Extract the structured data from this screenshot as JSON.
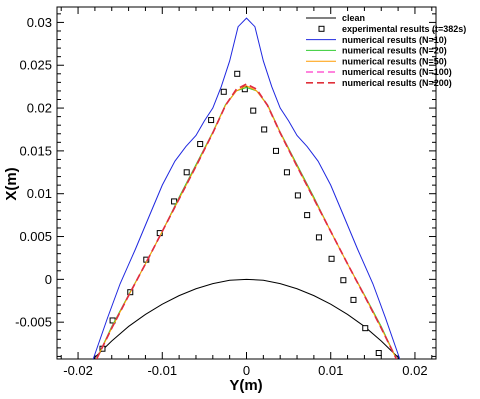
{
  "chart_data": {
    "type": "line",
    "title": "",
    "xlabel": "Y(m)",
    "ylabel": "X(m)",
    "xlim": [
      -0.0225,
      0.0225
    ],
    "ylim": [
      -0.0093,
      0.0318
    ],
    "x_ticks": [
      -0.02,
      -0.01,
      0,
      0.01,
      0.02
    ],
    "x_tick_labels": [
      "-0.02",
      "-0.01",
      "0",
      "0.01",
      "0.02"
    ],
    "y_ticks": [
      -0.005,
      0,
      0.005,
      0.01,
      0.015,
      0.02,
      0.025,
      0.03
    ],
    "y_tick_labels": [
      "-0.005",
      "0",
      "0.005",
      "0.01",
      "0.015",
      "0.02",
      "0.025",
      "0.03"
    ],
    "grid": false,
    "legend_position": "top-right",
    "series": [
      {
        "name": "clean",
        "style": "solid",
        "color": "#000000",
        "x": [
          -0.0182,
          -0.016,
          -0.014,
          -0.012,
          -0.01,
          -0.008,
          -0.006,
          -0.004,
          -0.002,
          0,
          0.002,
          0.004,
          0.006,
          0.008,
          0.01,
          0.012,
          0.014,
          0.016,
          0.0182
        ],
        "y": [
          -0.0093,
          -0.0072,
          -0.0055,
          -0.0041,
          -0.0029,
          -0.0019,
          -0.0011,
          -0.0005,
          -0.0001,
          0,
          -0.0001,
          -0.0005,
          -0.0011,
          -0.0019,
          -0.0029,
          -0.0041,
          -0.0055,
          -0.0072,
          -0.0093
        ]
      },
      {
        "name": "experimental results (t=382s)",
        "style": "square-markers",
        "color": "#000000",
        "x": [
          -0.0171,
          -0.0159,
          -0.0138,
          -0.0119,
          -0.0103,
          -0.0086,
          -0.0071,
          -0.0055,
          -0.0042,
          -0.0027,
          -0.0011,
          -0.0002,
          0.0008,
          0.0021,
          0.0035,
          0.0048,
          0.0061,
          0.0072,
          0.0086,
          0.0101,
          0.0115,
          0.0127,
          0.0141,
          0.0157,
          0.0171
        ],
        "y": [
          -0.0081,
          -0.0048,
          -0.0015,
          0.0023,
          0.0054,
          0.0091,
          0.0125,
          0.0158,
          0.0186,
          0.0219,
          0.024,
          0.0222,
          0.0197,
          0.0175,
          0.015,
          0.0125,
          0.0098,
          0.0075,
          0.0049,
          0.0024,
          -0.0001,
          -0.0024,
          -0.0057,
          -0.0086,
          -0.0103
        ]
      },
      {
        "name": "numerical results (N=10)",
        "style": "solid",
        "color": "#1f28e0",
        "x": [
          -0.0182,
          -0.0165,
          -0.015,
          -0.0132,
          -0.0115,
          -0.01,
          -0.0085,
          -0.0072,
          -0.006,
          -0.005,
          -0.004,
          -0.003,
          -0.002,
          -0.001,
          0,
          0.001,
          0.002,
          0.003,
          0.004,
          0.005,
          0.006,
          0.0072,
          0.0085,
          0.01,
          0.0115,
          0.0132,
          0.015,
          0.0165,
          0.0182
        ],
        "y": [
          -0.0093,
          -0.0045,
          -0.0005,
          0.0035,
          0.0075,
          0.011,
          0.0138,
          0.0155,
          0.0168,
          0.0185,
          0.02,
          0.0225,
          0.0255,
          0.0295,
          0.0305,
          0.0295,
          0.0255,
          0.0225,
          0.02,
          0.0185,
          0.0168,
          0.0155,
          0.0138,
          0.011,
          0.0075,
          0.0035,
          -0.0005,
          -0.0045,
          -0.0093
        ]
      },
      {
        "name": "numerical results (N=20)",
        "style": "solid",
        "color": "#33cc33",
        "x": [
          -0.0178,
          -0.016,
          -0.014,
          -0.012,
          -0.01,
          -0.008,
          -0.006,
          -0.004,
          -0.0025,
          -0.0012,
          0,
          0.0012,
          0.0025,
          0.004,
          0.006,
          0.008,
          0.01,
          0.012,
          0.014,
          0.016,
          0.0178
        ],
        "y": [
          -0.0093,
          -0.0055,
          -0.0018,
          0.0018,
          0.0056,
          0.0096,
          0.0134,
          0.0172,
          0.0204,
          0.022,
          0.0224,
          0.022,
          0.0204,
          0.0172,
          0.0134,
          0.0096,
          0.0056,
          0.0018,
          -0.0018,
          -0.0055,
          -0.0093
        ]
      },
      {
        "name": "numerical results (N=50)",
        "style": "solid",
        "color": "#ff9c00",
        "x": [
          -0.0178,
          -0.016,
          -0.014,
          -0.012,
          -0.01,
          -0.008,
          -0.006,
          -0.004,
          -0.0025,
          -0.0012,
          0,
          0.0012,
          0.0025,
          0.004,
          0.006,
          0.008,
          0.01,
          0.012,
          0.014,
          0.016,
          0.0178
        ],
        "y": [
          -0.0093,
          -0.0057,
          -0.0019,
          0.0018,
          0.0056,
          0.0094,
          0.0132,
          0.0171,
          0.0203,
          0.022,
          0.0226,
          0.022,
          0.0203,
          0.0171,
          0.0132,
          0.0094,
          0.0056,
          0.0018,
          -0.0019,
          -0.0057,
          -0.0093
        ]
      },
      {
        "name": "numerical results (N=100)",
        "style": "dashed",
        "color": "#ff5ad2",
        "x": [
          -0.0178,
          -0.016,
          -0.014,
          -0.012,
          -0.01,
          -0.008,
          -0.006,
          -0.004,
          -0.0025,
          -0.0012,
          0,
          0.0012,
          0.0025,
          0.004,
          0.006,
          0.008,
          0.01,
          0.012,
          0.014,
          0.016,
          0.0178
        ],
        "y": [
          -0.0093,
          -0.0057,
          -0.0019,
          0.0018,
          0.0056,
          0.0094,
          0.0132,
          0.0171,
          0.0203,
          0.0222,
          0.0228,
          0.0222,
          0.0203,
          0.0171,
          0.0132,
          0.0094,
          0.0056,
          0.0018,
          -0.0019,
          -0.0057,
          -0.0093
        ]
      },
      {
        "name": "numerical results (N=200)",
        "style": "dashed",
        "color": "#e0303a",
        "x": [
          -0.0178,
          -0.016,
          -0.014,
          -0.012,
          -0.01,
          -0.008,
          -0.006,
          -0.004,
          -0.0025,
          -0.0012,
          0,
          0.0012,
          0.0025,
          0.004,
          0.006,
          0.008,
          0.01,
          0.012,
          0.014,
          0.016,
          0.0178
        ],
        "y": [
          -0.0093,
          -0.0057,
          -0.0019,
          0.0018,
          0.0056,
          0.0094,
          0.0132,
          0.0171,
          0.0203,
          0.0222,
          0.0228,
          0.0222,
          0.0203,
          0.0171,
          0.0132,
          0.0094,
          0.0056,
          0.0018,
          -0.0019,
          -0.0057,
          -0.0093
        ]
      }
    ]
  }
}
